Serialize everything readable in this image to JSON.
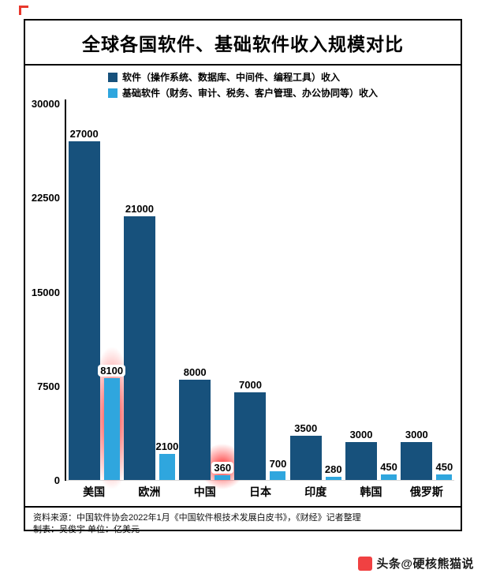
{
  "watermark": {
    "icon": "toutiao-logo",
    "text": "头条@硬核熊猫说"
  },
  "chart_data": {
    "type": "bar",
    "title": "全球各国软件、基础软件收入规模对比",
    "categories": [
      "美国",
      "欧洲",
      "中国",
      "日本",
      "印度",
      "韩国",
      "俄罗斯"
    ],
    "series": [
      {
        "name": "软件（操作系统、数据库、中间件、编程工具）收入",
        "color": "#17517c",
        "values": [
          27000,
          21000,
          8000,
          7000,
          3500,
          3000,
          3000
        ]
      },
      {
        "name": "基础软件（财务、审计、税务、客户管理、办公协同等）收入",
        "color": "#2fa6de",
        "values": [
          8100,
          2100,
          360,
          700,
          280,
          450,
          450
        ]
      }
    ],
    "highlighted": [
      {
        "category_index": 0,
        "series_index": 1
      },
      {
        "category_index": 2,
        "series_index": 1
      }
    ],
    "ylim": [
      0,
      30000
    ],
    "yticks": [
      0,
      7500,
      15000,
      22500,
      30000
    ],
    "grid": false,
    "legend_position": "top",
    "xlabel": "",
    "ylabel": "",
    "unit": "亿美元",
    "footer": [
      "资料来源：中国软件协会2022年1月《中国软件根技术发展白皮书》，《财经》记者整理",
      "制表：吴俊宇  单位：亿美元"
    ]
  }
}
